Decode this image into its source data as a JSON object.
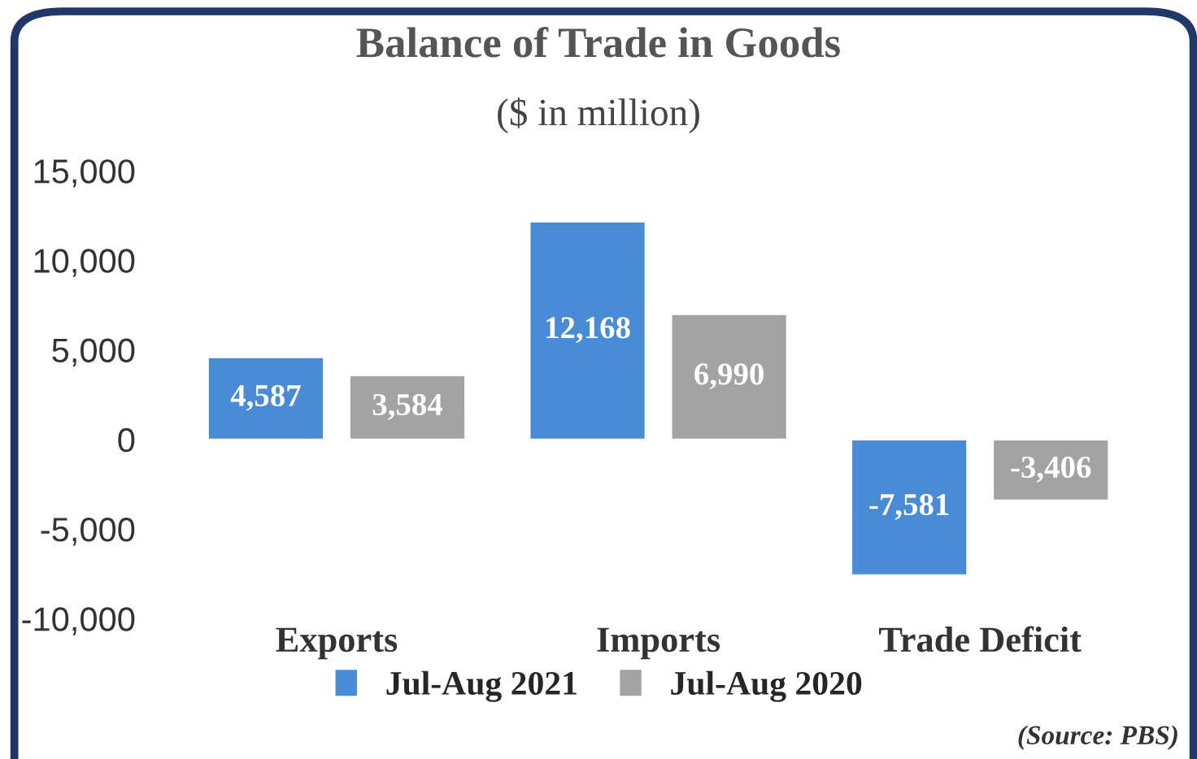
{
  "chart_data": {
    "type": "bar",
    "title": "Balance of Trade in Goods",
    "subtitle": "($ in million)",
    "categories": [
      "Exports",
      "Imports",
      "Trade Deficit"
    ],
    "series": [
      {
        "name": "Jul-Aug 2021",
        "color": "#4a8bd6",
        "values": [
          4587,
          12168,
          -7581
        ],
        "value_labels": [
          "4,587",
          "12,168",
          "-7,581"
        ]
      },
      {
        "name": "Jul-Aug 2020",
        "color": "#a3a3a3",
        "values": [
          3584,
          6990,
          -3406
        ],
        "value_labels": [
          "3,584",
          "6,990",
          "-3,406"
        ]
      }
    ],
    "ylim": [
      -10000,
      15000
    ],
    "yticks": [
      {
        "value": -10000,
        "label": "-10,000"
      },
      {
        "value": -5000,
        "label": "-5,000"
      },
      0,
      {
        "value": 5000,
        "label": "5,000"
      },
      {
        "value": 10000,
        "label": "10,000"
      },
      {
        "value": 15000,
        "label": "15,000"
      }
    ],
    "grid": false,
    "legend": "bottom",
    "annotations": [
      "(Source: PBS)"
    ]
  }
}
